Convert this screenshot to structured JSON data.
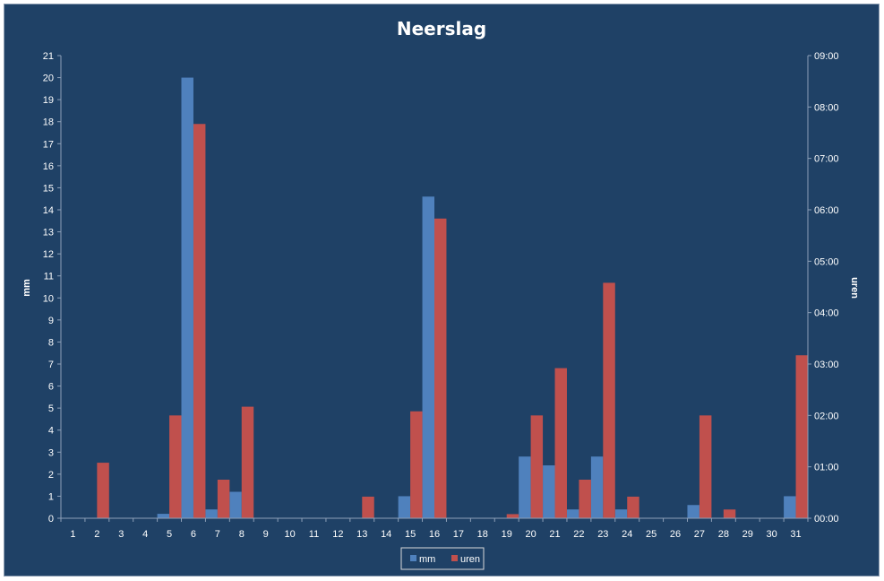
{
  "chart_data": {
    "type": "bar",
    "title": "Neerslag",
    "ylabel": "mm",
    "y2label": "uren",
    "ylim": [
      0,
      21
    ],
    "y2lim_hours": [
      0,
      9
    ],
    "grid": false,
    "legend_position": "bottom",
    "categories": [
      "1",
      "2",
      "3",
      "4",
      "5",
      "6",
      "7",
      "8",
      "9",
      "10",
      "11",
      "12",
      "13",
      "14",
      "15",
      "16",
      "17",
      "18",
      "19",
      "20",
      "21",
      "22",
      "23",
      "24",
      "25",
      "26",
      "27",
      "28",
      "29",
      "30",
      "31"
    ],
    "y_ticks": [
      "0",
      "1",
      "2",
      "3",
      "4",
      "5",
      "6",
      "7",
      "8",
      "9",
      "10",
      "11",
      "12",
      "13",
      "14",
      "15",
      "16",
      "17",
      "18",
      "19",
      "20",
      "21"
    ],
    "y2_ticks": [
      "00:00",
      "01:00",
      "02:00",
      "03:00",
      "04:00",
      "05:00",
      "06:00",
      "07:00",
      "08:00",
      "09:00"
    ],
    "series": [
      {
        "name": "mm",
        "axis": "left",
        "color": "#4f81bd",
        "values": [
          0,
          0,
          0,
          0,
          0.2,
          20,
          0.4,
          1.2,
          0,
          0,
          0,
          0,
          0,
          0,
          1,
          14.6,
          0,
          0,
          0,
          2.8,
          2.4,
          0.4,
          2.8,
          0.4,
          0,
          0,
          0.6,
          0,
          0,
          0,
          1
        ]
      },
      {
        "name": "uren",
        "axis": "right",
        "unit": "hours",
        "color": "#c0504d",
        "values": [
          0,
          1.08,
          0,
          0,
          2.0,
          7.67,
          0.75,
          2.17,
          0,
          0,
          0,
          0,
          0.42,
          0,
          2.08,
          5.83,
          0,
          0,
          0.08,
          2.0,
          2.92,
          0.75,
          4.58,
          0.42,
          0,
          0,
          2.0,
          0.17,
          0,
          0,
          3.17
        ]
      }
    ]
  }
}
